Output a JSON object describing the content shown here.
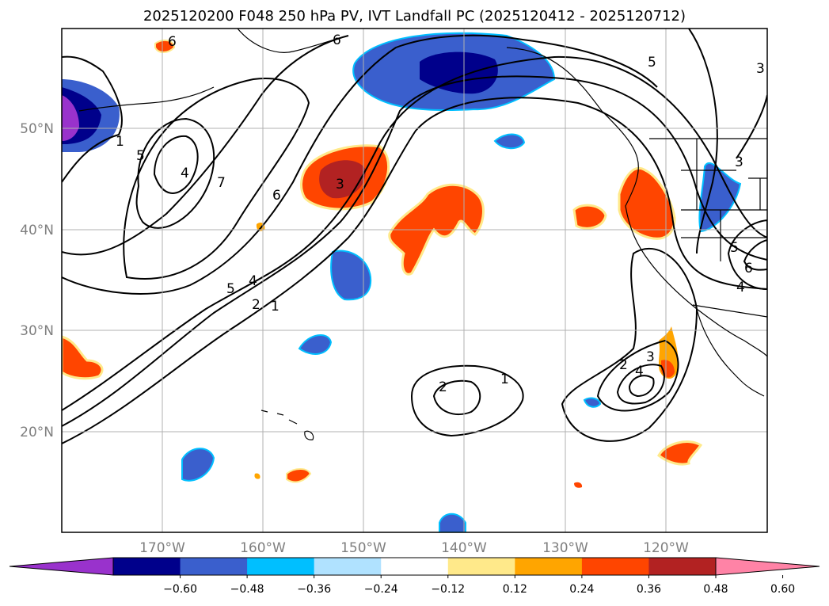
{
  "title": "2025120200 F048 250 hPa PV, IVT Landfall PC (2025120412 - 2025120712)",
  "lat_labels": [
    "50°N",
    "40°N",
    "30°N",
    "20°N"
  ],
  "lon_labels": [
    "170°W",
    "160°W",
    "150°W",
    "140°W",
    "130°W",
    "120°W"
  ],
  "colorbar": {
    "ticks": [
      "−0.60",
      "−0.48",
      "−0.36",
      "−0.24",
      "−0.12",
      "0.12",
      "0.24",
      "0.36",
      "0.48",
      "0.60"
    ],
    "colors": [
      "#9932cc",
      "#00008b",
      "#3a5fcd",
      "#00bfff",
      "#b0e2ff",
      "#ffffff",
      "#ffe98a",
      "#ffa500",
      "#ff4500",
      "#b22222",
      "#ff83a6"
    ]
  },
  "contour_labels": [
    "6",
    "6",
    "5",
    "3",
    "1",
    "5",
    "4",
    "7",
    "6",
    "3",
    "5",
    "4",
    "2",
    "1",
    "3",
    "5",
    "6",
    "4",
    "2",
    "1",
    "2",
    "3",
    "4"
  ]
}
